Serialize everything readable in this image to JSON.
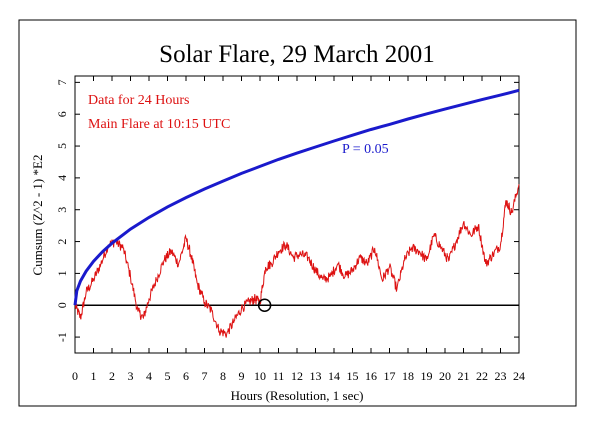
{
  "chart_data": {
    "type": "line",
    "title": "Solar Flare, 29 March 2001",
    "xlabel": "Hours (Resolution, 1 sec)",
    "ylabel": "Cumsum (Z^2 - 1) *E2",
    "xlim": [
      0,
      24
    ],
    "ylim": [
      -1.5,
      7.2
    ],
    "x_ticks": [
      0,
      1,
      2,
      3,
      4,
      5,
      6,
      7,
      8,
      9,
      10,
      11,
      12,
      13,
      14,
      15,
      16,
      17,
      18,
      19,
      20,
      21,
      22,
      23,
      24
    ],
    "y_ticks": [
      -1,
      0,
      1,
      2,
      3,
      4,
      5,
      6,
      7
    ],
    "annotations": [
      {
        "text": "Data for 24 Hours",
        "color": "#dd1111"
      },
      {
        "text": "Main Flare at 10:15 UTC",
        "color": "#dd1111"
      },
      {
        "text": "P = 0.05",
        "color": "#1a1acc"
      }
    ],
    "marker": {
      "type": "circle",
      "x": 10.25,
      "y": 0
    },
    "series": [
      {
        "color": "#dd1111",
        "x": [
          0,
          0.3,
          0.6,
          1,
          1.4,
          1.8,
          2.2,
          2.6,
          3,
          3.4,
          3.7,
          4,
          4.4,
          4.8,
          5.2,
          5.6,
          6,
          6.3,
          6.6,
          7,
          7.4,
          7.8,
          8.2,
          8.6,
          9,
          9.4,
          9.7,
          10,
          10.3,
          10.6,
          11,
          11.4,
          11.8,
          12.2,
          12.6,
          13,
          13.4,
          13.8,
          14.2,
          14.6,
          15,
          15.4,
          15.8,
          16.2,
          16.6,
          17,
          17.4,
          17.8,
          18.2,
          18.6,
          19,
          19.4,
          19.8,
          20.2,
          20.6,
          21,
          21.4,
          21.8,
          22.2,
          22.6,
          23,
          23.3,
          23.6,
          24
        ],
        "y": [
          0,
          -0.4,
          0.4,
          0.8,
          1.3,
          1.9,
          2.0,
          1.8,
          0.9,
          -0.2,
          -0.4,
          0.2,
          0.8,
          1.4,
          1.7,
          1.3,
          2.1,
          1.5,
          0.7,
          0.1,
          -0.2,
          -0.8,
          -0.9,
          -0.5,
          -0.1,
          0.1,
          0.2,
          0.1,
          1.2,
          1.3,
          1.7,
          1.9,
          1.5,
          1.6,
          1.5,
          1.1,
          0.8,
          0.9,
          1.3,
          0.9,
          1.1,
          1.5,
          1.3,
          1.8,
          0.8,
          1.2,
          0.5,
          1.4,
          1.8,
          1.7,
          1.4,
          2.2,
          1.8,
          1.4,
          2.0,
          2.6,
          2.2,
          2.5,
          1.3,
          1.6,
          1.9,
          3.3,
          2.9,
          3.8
        ]
      },
      {
        "color": "#1a1acc",
        "x": [
          0,
          0.1,
          0.3,
          0.6,
          1,
          1.5,
          2,
          3,
          4,
          5,
          6,
          7,
          8,
          9,
          10,
          11,
          12,
          13,
          14,
          15,
          16,
          17,
          18,
          19,
          20,
          21,
          22,
          23,
          24
        ],
        "y": [
          0,
          0.45,
          0.76,
          1.07,
          1.38,
          1.69,
          1.95,
          2.39,
          2.76,
          3.09,
          3.38,
          3.65,
          3.9,
          4.14,
          4.36,
          4.58,
          4.78,
          4.97,
          5.16,
          5.34,
          5.52,
          5.68,
          5.85,
          6.01,
          6.16,
          6.31,
          6.46,
          6.6,
          6.75
        ]
      }
    ]
  }
}
